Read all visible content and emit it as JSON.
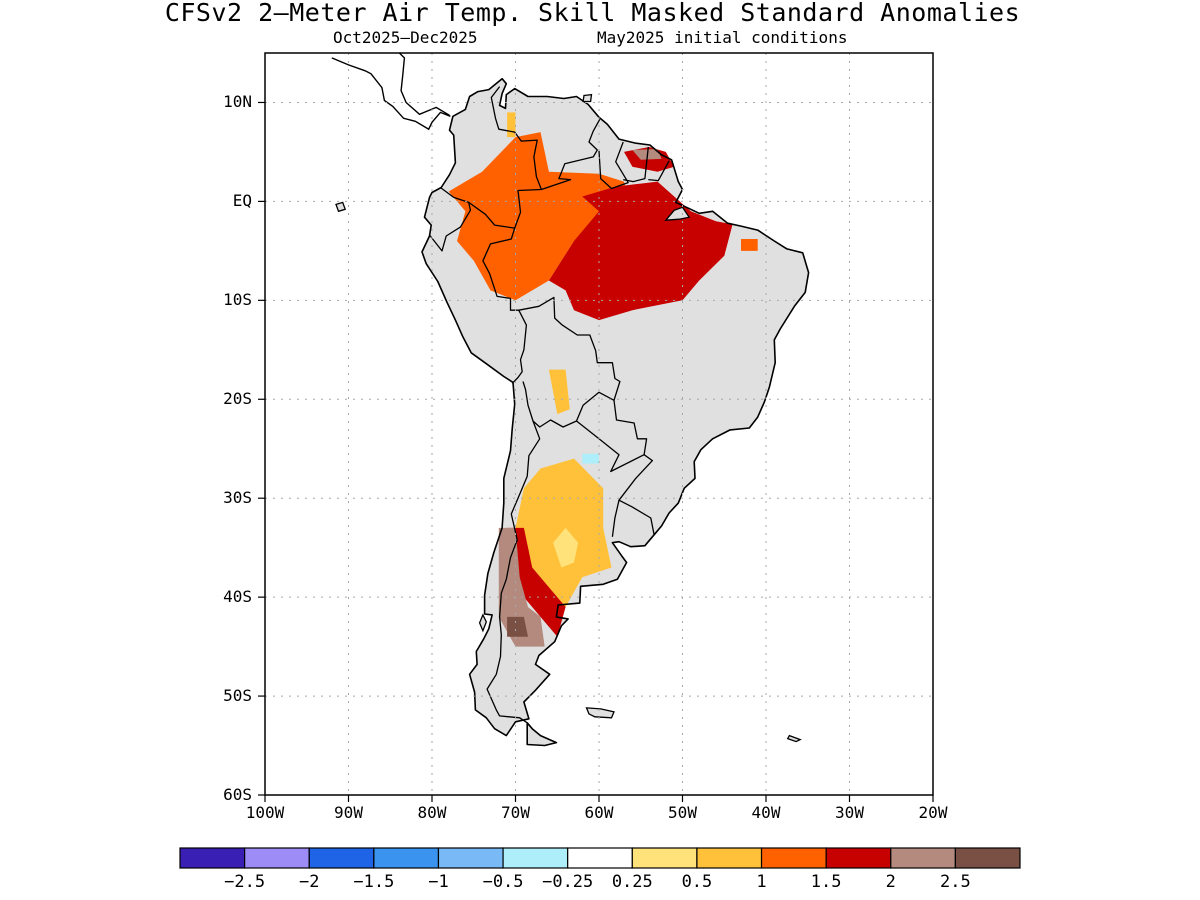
{
  "title": "CFSv2 2—Meter Air Temp. Skill Masked Standard Anomalies",
  "subtitle_period": "Oct2025—Dec2025",
  "subtitle_init": "May2025 initial conditions",
  "colors": {
    "land_masked": "#e0e0e0",
    "coast": "#000000",
    "grid": "#a8a8a8"
  },
  "map": {
    "lon_range": [
      -100,
      -20
    ],
    "lat_range": [
      -60,
      15
    ],
    "y_ticks": [
      {
        "lat": 10,
        "label": "10N"
      },
      {
        "lat": 0,
        "label": "EQ"
      },
      {
        "lat": -10,
        "label": "10S"
      },
      {
        "lat": -20,
        "label": "20S"
      },
      {
        "lat": -30,
        "label": "30S"
      },
      {
        "lat": -40,
        "label": "40S"
      },
      {
        "lat": -50,
        "label": "50S"
      },
      {
        "lat": -60,
        "label": "60S"
      }
    ],
    "x_ticks": [
      {
        "lon": -100,
        "label": "100W"
      },
      {
        "lon": -90,
        "label": "90W"
      },
      {
        "lon": -80,
        "label": "80W"
      },
      {
        "lon": -70,
        "label": "70W"
      },
      {
        "lon": -60,
        "label": "60W"
      },
      {
        "lon": -50,
        "label": "50W"
      },
      {
        "lon": -40,
        "label": "40W"
      },
      {
        "lon": -30,
        "label": "30W"
      },
      {
        "lon": -20,
        "label": "20W"
      }
    ]
  },
  "colorbar": {
    "bins": [
      {
        "color": "#3a1fb5"
      },
      {
        "color": "#9d8cf5"
      },
      {
        "color": "#1f63e6"
      },
      {
        "color": "#3b93f0"
      },
      {
        "color": "#78b9f6"
      },
      {
        "color": "#aeeefa"
      },
      {
        "color": "#ffffff"
      },
      {
        "color": "#ffe37a"
      },
      {
        "color": "#ffc13a"
      },
      {
        "color": "#ff6100"
      },
      {
        "color": "#c70000"
      },
      {
        "color": "#b48a7e"
      },
      {
        "color": "#7a5044"
      }
    ],
    "labels": [
      "−2.5",
      "−2",
      "−1.5",
      "−1",
      "−0.5",
      "−0.25",
      "0.25",
      "0.5",
      "1",
      "1.5",
      "2",
      "2.5"
    ]
  },
  "anomaly_regions": [
    {
      "level": "1.5",
      "color": "#ff6100",
      "lonlat": [
        [
          -74,
          3
        ],
        [
          -70,
          6.5
        ],
        [
          -67,
          7
        ],
        [
          -66,
          3
        ],
        [
          -60,
          2.8
        ],
        [
          -57,
          2
        ],
        [
          -56,
          -1
        ],
        [
          -63,
          -4
        ],
        [
          -66,
          -8
        ],
        [
          -70,
          -10
        ],
        [
          -73,
          -9
        ],
        [
          -75,
          -6
        ],
        [
          -77,
          -4
        ],
        [
          -76,
          -1
        ],
        [
          -78,
          1
        ]
      ]
    },
    {
      "level": "2",
      "color": "#c70000",
      "lonlat": [
        [
          -62,
          0.5
        ],
        [
          -58,
          1.5
        ],
        [
          -55,
          1.8
        ],
        [
          -53,
          2
        ],
        [
          -51,
          0.5
        ],
        [
          -49,
          -1
        ],
        [
          -46,
          -2
        ],
        [
          -44,
          -2.3
        ],
        [
          -45,
          -5.5
        ],
        [
          -48,
          -8
        ],
        [
          -50,
          -10
        ],
        [
          -56,
          -11
        ],
        [
          -60,
          -12
        ],
        [
          -63,
          -11
        ],
        [
          -64,
          -9
        ],
        [
          -66,
          -8
        ],
        [
          -63,
          -4
        ],
        [
          -60,
          -1
        ]
      ]
    },
    {
      "level": "2",
      "color": "#c70000",
      "lonlat": [
        [
          -57,
          5
        ],
        [
          -54,
          5.5
        ],
        [
          -52,
          5
        ],
        [
          -51,
          3.5
        ],
        [
          -53,
          3
        ],
        [
          -56,
          3.5
        ]
      ]
    },
    {
      "level": "2.5",
      "color": "#b48a7e",
      "lonlat": [
        [
          -56,
          5.2
        ],
        [
          -53,
          5.3
        ],
        [
          -52.5,
          4.3
        ],
        [
          -55,
          4.2
        ]
      ]
    },
    {
      "level": "1.5",
      "color": "#ff6100",
      "lonlat": [
        [
          -43,
          -3.8
        ],
        [
          -41,
          -3.8
        ],
        [
          -41,
          -5
        ],
        [
          -43,
          -5
        ]
      ]
    },
    {
      "level": "1",
      "color": "#ffc13a",
      "lonlat": [
        [
          -69,
          -29
        ],
        [
          -67,
          -27
        ],
        [
          -63,
          -26
        ],
        [
          -59.5,
          -29
        ],
        [
          -59.5,
          -33
        ],
        [
          -58.5,
          -37
        ],
        [
          -62,
          -38
        ],
        [
          -64,
          -41
        ],
        [
          -66,
          -42
        ],
        [
          -68,
          -40
        ],
        [
          -70,
          -36
        ],
        [
          -70,
          -33
        ]
      ]
    },
    {
      "level": "0.5",
      "color": "#ffe37a",
      "lonlat": [
        [
          -65.5,
          -34.5
        ],
        [
          -64,
          -33
        ],
        [
          -62.5,
          -34.5
        ],
        [
          -63,
          -36.5
        ],
        [
          -64.5,
          -37
        ]
      ]
    },
    {
      "level": "2",
      "color": "#c70000",
      "lonlat": [
        [
          -71,
          -33
        ],
        [
          -69,
          -33
        ],
        [
          -68,
          -37
        ],
        [
          -66,
          -39
        ],
        [
          -64,
          -41
        ],
        [
          -65,
          -44
        ],
        [
          -67,
          -42
        ],
        [
          -69,
          -40
        ],
        [
          -71,
          -38
        ]
      ]
    },
    {
      "level": "2.5",
      "color": "#b48a7e",
      "lonlat": [
        [
          -72,
          -33
        ],
        [
          -70,
          -33
        ],
        [
          -69.5,
          -38
        ],
        [
          -68.5,
          -41
        ],
        [
          -67,
          -42
        ],
        [
          -66.5,
          -45
        ],
        [
          -70,
          -45
        ],
        [
          -72,
          -42
        ]
      ]
    },
    {
      "level": "2.5+",
      "color": "#7a5044",
      "lonlat": [
        [
          -71,
          -42
        ],
        [
          -69,
          -42
        ],
        [
          -68.5,
          -44
        ],
        [
          -71,
          -44
        ]
      ]
    },
    {
      "level": "1",
      "color": "#ffc13a",
      "lonlat": [
        [
          -66,
          -17
        ],
        [
          -64,
          -17
        ],
        [
          -63.5,
          -21
        ],
        [
          -65,
          -21.5
        ]
      ]
    },
    {
      "level": "-0.5",
      "color": "#aeeefa",
      "lonlat": [
        [
          -62,
          -25.5
        ],
        [
          -60,
          -25.5
        ],
        [
          -60,
          -26.5
        ],
        [
          -62,
          -26.5
        ]
      ]
    },
    {
      "level": "1",
      "color": "#ffc13a",
      "lonlat": [
        [
          -71,
          9
        ],
        [
          -70,
          9
        ],
        [
          -70,
          6.5
        ],
        [
          -71,
          6.5
        ]
      ]
    }
  ]
}
